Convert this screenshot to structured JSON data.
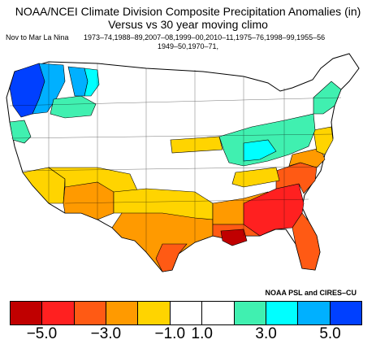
{
  "title_line1": "NOAA/NCEI Climate Division Composite Precipitation Anomalies (in)",
  "title_line2": "Versus vs 30 year moving climo",
  "period": "Nov to Mar La Nina",
  "years_line1": "1973–74,1988–89,2007–08,1999–00,2010–11,1975–76,1998–99,1955–56",
  "years_line2": "1949–50,1970–71,",
  "credit": "NOAA PSL and CIRES–CU",
  "colors": {
    "dark_red": "#c00000",
    "red": "#ff2020",
    "red_orange": "#ff5a14",
    "orange": "#ff9a00",
    "gold": "#ffd400",
    "white": "#ffffff",
    "aquamarine": "#40f0b0",
    "cyan": "#00ffff",
    "sky_blue": "#00b0ff",
    "blue": "#0040ff"
  },
  "legend": {
    "bins": [
      "#c00000",
      "#ff2020",
      "#ff5a14",
      "#ff9a00",
      "#ffd400",
      "#ffffff",
      "#ffffff",
      "#40f0b0",
      "#00ffff",
      "#00b0ff",
      "#0040ff"
    ],
    "ticks": [
      "−5.0",
      "−3.0",
      "−1.0",
      "1.0",
      "3.0",
      "5.0"
    ]
  }
}
